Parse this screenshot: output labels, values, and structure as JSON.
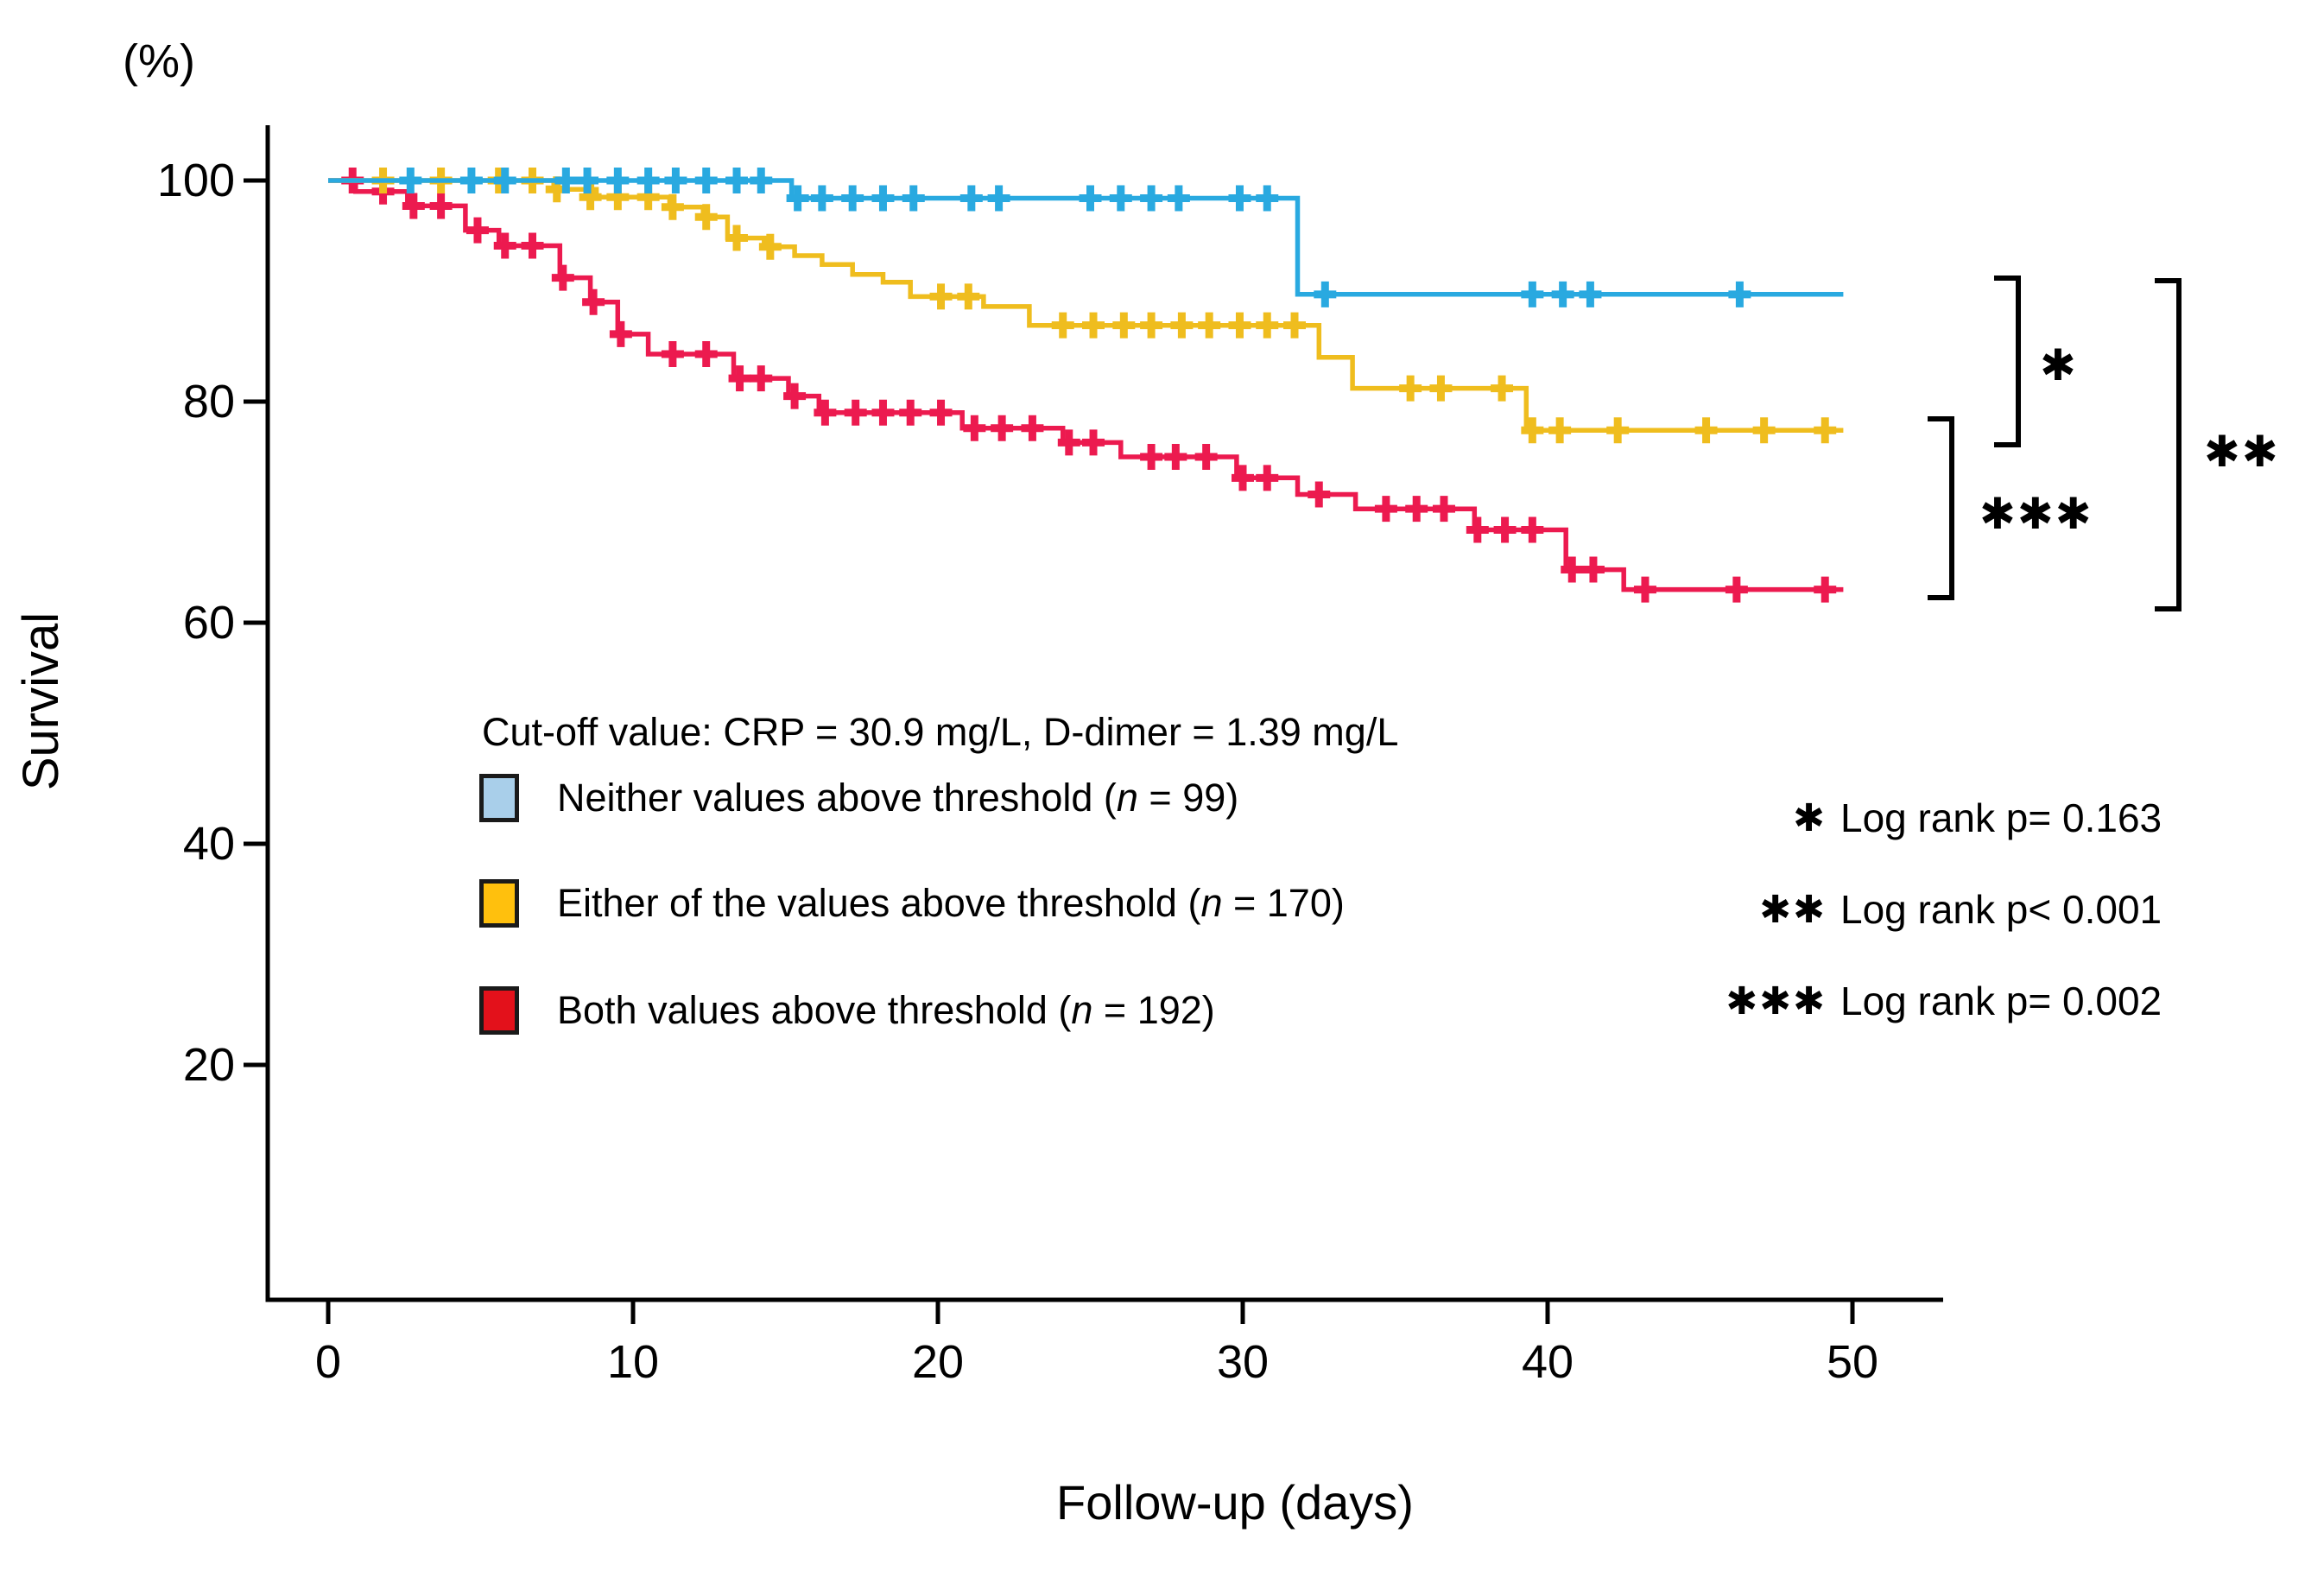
{
  "chart_data": {
    "type": "line",
    "subtype": "kaplan-meier-step",
    "title": "",
    "xlabel": "Follow-up (days)",
    "ylabel": "Survival",
    "y_unit": "(%)",
    "x_ticks": [
      0,
      10,
      20,
      30,
      40,
      50
    ],
    "y_ticks": [
      100,
      80,
      60,
      40,
      20
    ],
    "xlim": [
      0,
      53
    ],
    "ylim": [
      0,
      106
    ],
    "grid": false,
    "legend_position": "inside-left-middle",
    "cutoff_note": "Cut-off value: CRP = 30.9 mg/L, D-dimer = 1.39 mg/L",
    "series": [
      {
        "name": "Neither values above threshold",
        "n": 99,
        "color": "#29A9E0",
        "swatch_color": "#A9CFEA",
        "steps": [
          [
            0,
            100
          ],
          [
            15.2,
            100
          ],
          [
            15.2,
            98.4
          ],
          [
            31.8,
            98.4
          ],
          [
            31.8,
            89.7
          ],
          [
            49.7,
            89.7
          ]
        ],
        "censors": [
          [
            2.7,
            100
          ],
          [
            4.7,
            100
          ],
          [
            5.8,
            100
          ],
          [
            7.8,
            100
          ],
          [
            8.5,
            100
          ],
          [
            9.5,
            100
          ],
          [
            10.5,
            100
          ],
          [
            11.4,
            100
          ],
          [
            12.4,
            100
          ],
          [
            13.4,
            100
          ],
          [
            14.2,
            100
          ],
          [
            15.4,
            98.4
          ],
          [
            16.2,
            98.4
          ],
          [
            17.2,
            98.4
          ],
          [
            18.2,
            98.4
          ],
          [
            19.2,
            98.4
          ],
          [
            21.1,
            98.4
          ],
          [
            22.0,
            98.4
          ],
          [
            25.0,
            98.4
          ],
          [
            26.0,
            98.4
          ],
          [
            27.0,
            98.4
          ],
          [
            27.9,
            98.4
          ],
          [
            29.9,
            98.4
          ],
          [
            30.8,
            98.4
          ],
          [
            32.7,
            89.7
          ],
          [
            39.5,
            89.7
          ],
          [
            40.5,
            89.7
          ],
          [
            41.4,
            89.7
          ],
          [
            46.3,
            89.7
          ]
        ]
      },
      {
        "name": "Either of the values above threshold",
        "n": 170,
        "color": "#EFBD1E",
        "swatch_color": "#FFC00D",
        "steps": [
          [
            0,
            100
          ],
          [
            7.4,
            100
          ],
          [
            7.4,
            99.2
          ],
          [
            8.8,
            99.2
          ],
          [
            8.8,
            98.5
          ],
          [
            11.2,
            98.5
          ],
          [
            11.2,
            97.6
          ],
          [
            12.3,
            97.6
          ],
          [
            12.3,
            96.7
          ],
          [
            13.1,
            96.7
          ],
          [
            13.1,
            94.8
          ],
          [
            14.3,
            94.8
          ],
          [
            14.3,
            94.0
          ],
          [
            15.3,
            94.0
          ],
          [
            15.3,
            93.2
          ],
          [
            16.2,
            93.2
          ],
          [
            16.2,
            92.4
          ],
          [
            17.2,
            92.4
          ],
          [
            17.2,
            91.5
          ],
          [
            18.2,
            91.5
          ],
          [
            18.2,
            90.8
          ],
          [
            19.1,
            90.8
          ],
          [
            19.1,
            89.5
          ],
          [
            21.5,
            89.5
          ],
          [
            21.5,
            88.6
          ],
          [
            23.0,
            88.6
          ],
          [
            23.0,
            86.9
          ],
          [
            32.5,
            86.9
          ],
          [
            32.5,
            84.0
          ],
          [
            33.6,
            84.0
          ],
          [
            33.6,
            81.2
          ],
          [
            39.3,
            81.2
          ],
          [
            39.3,
            77.4
          ],
          [
            49.7,
            77.4
          ]
        ],
        "censors": [
          [
            1.8,
            100
          ],
          [
            3.7,
            100
          ],
          [
            5.6,
            100
          ],
          [
            6.7,
            100
          ],
          [
            7.5,
            99.2
          ],
          [
            8.6,
            98.5
          ],
          [
            9.5,
            98.5
          ],
          [
            10.5,
            98.5
          ],
          [
            11.3,
            97.6
          ],
          [
            12.4,
            96.7
          ],
          [
            13.4,
            94.8
          ],
          [
            14.5,
            94.0
          ],
          [
            20.1,
            89.5
          ],
          [
            21.0,
            89.5
          ],
          [
            24.1,
            86.9
          ],
          [
            25.1,
            86.9
          ],
          [
            26.1,
            86.9
          ],
          [
            27.0,
            86.9
          ],
          [
            28.0,
            86.9
          ],
          [
            28.9,
            86.9
          ],
          [
            29.9,
            86.9
          ],
          [
            30.8,
            86.9
          ],
          [
            31.7,
            86.9
          ],
          [
            35.5,
            81.2
          ],
          [
            36.5,
            81.2
          ],
          [
            38.5,
            81.2
          ],
          [
            39.5,
            77.4
          ],
          [
            40.4,
            77.4
          ],
          [
            42.3,
            77.4
          ],
          [
            45.2,
            77.4
          ],
          [
            47.1,
            77.4
          ],
          [
            49.1,
            77.4
          ]
        ]
      },
      {
        "name": "Both values above threshold",
        "n": 192,
        "color": "#EC1A4F",
        "swatch_color": "#E3111B",
        "steps": [
          [
            0,
            100
          ],
          [
            0.9,
            100
          ],
          [
            0.9,
            99.0
          ],
          [
            2.6,
            99.0
          ],
          [
            2.6,
            97.7
          ],
          [
            4.5,
            97.7
          ],
          [
            4.5,
            95.5
          ],
          [
            5.6,
            95.5
          ],
          [
            5.6,
            94.1
          ],
          [
            7.6,
            94.1
          ],
          [
            7.6,
            91.2
          ],
          [
            8.6,
            91.2
          ],
          [
            8.6,
            89.0
          ],
          [
            9.5,
            89.0
          ],
          [
            9.5,
            86.1
          ],
          [
            10.5,
            86.1
          ],
          [
            10.5,
            84.3
          ],
          [
            13.3,
            84.3
          ],
          [
            13.3,
            82.1
          ],
          [
            15.1,
            82.1
          ],
          [
            15.1,
            80.5
          ],
          [
            16.1,
            80.5
          ],
          [
            16.1,
            79.0
          ],
          [
            20.8,
            79.0
          ],
          [
            20.8,
            77.6
          ],
          [
            24.1,
            77.6
          ],
          [
            24.1,
            76.3
          ],
          [
            26.0,
            76.3
          ],
          [
            26.0,
            75.0
          ],
          [
            29.8,
            75.0
          ],
          [
            29.8,
            73.1
          ],
          [
            31.8,
            73.1
          ],
          [
            31.8,
            71.6
          ],
          [
            33.7,
            71.6
          ],
          [
            33.7,
            70.3
          ],
          [
            37.6,
            70.3
          ],
          [
            37.6,
            68.4
          ],
          [
            40.6,
            68.4
          ],
          [
            40.6,
            64.8
          ],
          [
            42.5,
            64.8
          ],
          [
            42.5,
            63.0
          ],
          [
            49.7,
            63.0
          ]
        ],
        "censors": [
          [
            0.8,
            100
          ],
          [
            1.8,
            99.0
          ],
          [
            2.8,
            97.7
          ],
          [
            3.7,
            97.7
          ],
          [
            4.9,
            95.5
          ],
          [
            5.8,
            94.1
          ],
          [
            6.7,
            94.1
          ],
          [
            7.7,
            91.2
          ],
          [
            8.7,
            89.0
          ],
          [
            9.6,
            86.1
          ],
          [
            11.3,
            84.3
          ],
          [
            12.4,
            84.3
          ],
          [
            13.5,
            82.1
          ],
          [
            14.2,
            82.1
          ],
          [
            15.3,
            80.5
          ],
          [
            16.3,
            79.0
          ],
          [
            17.3,
            79.0
          ],
          [
            18.2,
            79.0
          ],
          [
            19.1,
            79.0
          ],
          [
            20.1,
            79.0
          ],
          [
            21.2,
            77.6
          ],
          [
            22.1,
            77.6
          ],
          [
            23.1,
            77.6
          ],
          [
            24.3,
            76.3
          ],
          [
            25.1,
            76.3
          ],
          [
            27.0,
            75.0
          ],
          [
            27.8,
            75.0
          ],
          [
            28.8,
            75.0
          ],
          [
            30.0,
            73.1
          ],
          [
            30.8,
            73.1
          ],
          [
            32.5,
            71.6
          ],
          [
            34.7,
            70.3
          ],
          [
            35.7,
            70.3
          ],
          [
            36.6,
            70.3
          ],
          [
            37.7,
            68.4
          ],
          [
            38.6,
            68.4
          ],
          [
            39.5,
            68.4
          ],
          [
            40.8,
            64.8
          ],
          [
            41.5,
            64.8
          ],
          [
            43.2,
            63.0
          ],
          [
            46.2,
            63.0
          ],
          [
            49.1,
            63.0
          ]
        ]
      }
    ],
    "comparisons": [
      {
        "symbol": "*",
        "between": [
          "Neither values above threshold",
          "Either of the values above threshold"
        ],
        "label": "Log rank p= 0.163"
      },
      {
        "symbol": "**",
        "between": [
          "Neither values above threshold",
          "Both values above threshold"
        ],
        "label": "Log rank p< 0.001"
      },
      {
        "symbol": "***",
        "between": [
          "Either of the values above threshold",
          "Both values above threshold"
        ],
        "label": "Log rank p= 0.002"
      }
    ]
  },
  "colors": {
    "axis": "#000000",
    "text": "#000000",
    "background": "#ffffff"
  }
}
